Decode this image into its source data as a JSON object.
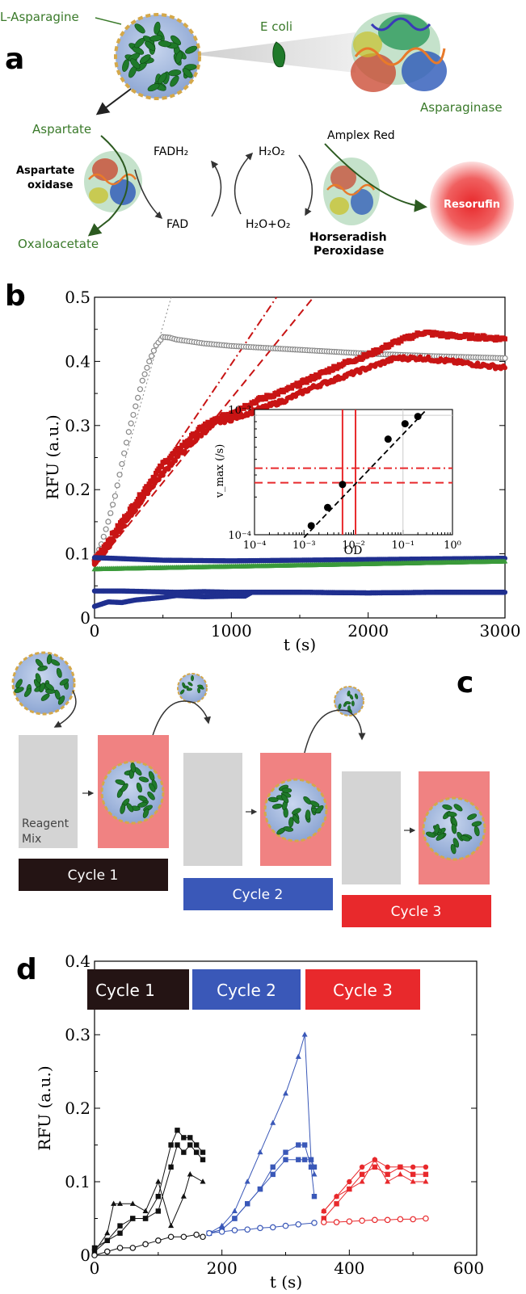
{
  "panel_a": {
    "label": "a",
    "l_asparagine": "L-Asparagine",
    "e_coli": "E coli",
    "asparaginase": "Asparaginase",
    "aspartate": "Aspartate",
    "aspartate_oxidase": [
      "Aspartate",
      "oxidase"
    ],
    "oxaloacetate": "Oxaloacetate",
    "fadh2": "FADH₂",
    "fad": "FAD",
    "h2o2": "H₂O₂",
    "h2o_o2": "H₂O+O₂",
    "amplex_red": "Amplex Red",
    "hrp": [
      "Horseradish",
      "Peroxidase"
    ],
    "resorufin": "Resorufin"
  },
  "panel_b": {
    "label": "b",
    "ylabel": "RFU (a.u.)",
    "xlabel": "t (s)",
    "yticks": [
      "0",
      "0.1",
      "0.2",
      "0.3",
      "0.4",
      "0.5"
    ],
    "xticks": [
      "0",
      "1000",
      "2000",
      "3000"
    ],
    "inset": {
      "ylabel": "v_max (/s)",
      "xlabel": "OD",
      "yticks": [
        "10⁻⁴",
        "10⁻³"
      ],
      "xticks": [
        "10⁻⁴",
        "10⁻³",
        "10⁻²",
        "10⁻¹",
        "10⁰"
      ]
    }
  },
  "panel_c": {
    "label": "c",
    "reagent_mix": [
      "Reagent",
      "Mix"
    ],
    "cycles": [
      "Cycle 1",
      "Cycle 2",
      "Cycle 3"
    ]
  },
  "panel_d": {
    "label": "d",
    "ylabel": "RFU (a.u.)",
    "xlabel": "t (s)",
    "yticks": [
      "0",
      "0.1",
      "0.2",
      "0.3",
      "0.4"
    ],
    "xticks": [
      "0",
      "200",
      "400",
      "600"
    ],
    "cycles": [
      "Cycle 1",
      "Cycle 2",
      "Cycle 3"
    ]
  },
  "colors": {
    "cycle1": "#241414",
    "cycle2": "#3a58b8",
    "cycle3": "#e8292c",
    "text_green": "#3a7a2a",
    "red_series": "#c81414",
    "blue_series": "#1f2f8f",
    "green_series": "#3a9a3a",
    "grey_series": "#888888",
    "pink_box": "#f08282",
    "grey_box": "#d4d4d4"
  },
  "chart_data": [
    {
      "type": "scatter",
      "panel": "b",
      "xlabel": "t (s)",
      "ylabel": "RFU (a.u.)",
      "xlim": [
        0,
        3000
      ],
      "ylim": [
        0,
        0.5
      ],
      "grid": false,
      "series": [
        {
          "color": "#888888",
          "marker": "open-circle",
          "x": [
            0,
            50,
            100,
            150,
            200,
            250,
            300,
            350,
            400,
            450,
            500,
            550,
            600,
            800,
            1000,
            1500,
            2000,
            2500,
            3000
          ],
          "y": [
            0.09,
            0.115,
            0.15,
            0.19,
            0.24,
            0.29,
            0.33,
            0.37,
            0.4,
            0.425,
            0.438,
            0.437,
            0.434,
            0.428,
            0.424,
            0.418,
            0.412,
            0.408,
            0.405
          ]
        },
        {
          "color": "#c81414",
          "marker": "square",
          "x": [
            0,
            100,
            200,
            300,
            400,
            500,
            600,
            700,
            800,
            900,
            1000,
            1200,
            1400,
            1600,
            1800,
            2000,
            2200,
            2400,
            2600,
            2800,
            3000
          ],
          "y": [
            0.09,
            0.12,
            0.15,
            0.18,
            0.21,
            0.24,
            0.26,
            0.28,
            0.3,
            0.31,
            0.32,
            0.34,
            0.355,
            0.375,
            0.395,
            0.41,
            0.43,
            0.445,
            0.44,
            0.438,
            0.435
          ]
        },
        {
          "color": "#c81414",
          "marker": "circle",
          "x": [
            0,
            100,
            200,
            300,
            400,
            500,
            600,
            700,
            800,
            900,
            1000,
            1200,
            1400,
            1600,
            1800,
            2000,
            2200,
            2400,
            2600,
            2800,
            3000
          ],
          "y": [
            0.085,
            0.11,
            0.14,
            0.17,
            0.2,
            0.225,
            0.25,
            0.27,
            0.29,
            0.305,
            0.31,
            0.325,
            0.34,
            0.36,
            0.375,
            0.39,
            0.405,
            0.405,
            0.4,
            0.395,
            0.39
          ]
        },
        {
          "color": "#1f2f8f",
          "marker": "circle",
          "x": [
            0,
            500,
            1000,
            1500,
            2000,
            2500,
            3000
          ],
          "y": [
            0.094,
            0.09,
            0.089,
            0.09,
            0.091,
            0.092,
            0.093
          ]
        },
        {
          "color": "#3a9a3a",
          "marker": "triangle",
          "x": [
            0,
            500,
            1000,
            1500,
            2000,
            2500,
            3000
          ],
          "y": [
            0.076,
            0.078,
            0.08,
            0.082,
            0.084,
            0.086,
            0.088
          ]
        },
        {
          "color": "#1f2f8f",
          "marker": "circle",
          "x": [
            0,
            200,
            400,
            600,
            800,
            1000,
            1500,
            2000,
            2500,
            3000
          ],
          "y": [
            0.042,
            0.042,
            0.041,
            0.04,
            0.041,
            0.04,
            0.04,
            0.039,
            0.04,
            0.04
          ]
        },
        {
          "color": "#1f2f8f",
          "marker": "circle",
          "x": [
            0,
            100,
            200,
            300,
            400,
            500,
            600,
            800,
            1000,
            1100,
            1150,
            1500,
            2000,
            2500,
            3000
          ],
          "y": [
            0.018,
            0.025,
            0.024,
            0.028,
            0.03,
            0.032,
            0.035,
            0.033,
            0.034,
            0.034,
            0.04,
            0.04,
            0.039,
            0.04,
            0.04
          ]
        }
      ],
      "fit_lines": [
        {
          "style": "dotted",
          "color": "#888888",
          "x": [
            0,
            560
          ],
          "y": [
            0.08,
            0.5
          ]
        },
        {
          "style": "dash-dot",
          "color": "#c81414",
          "x": [
            0,
            1330
          ],
          "y": [
            0.08,
            0.5
          ]
        },
        {
          "style": "dashed",
          "color": "#c81414",
          "x": [
            0,
            1600
          ],
          "y": [
            0.08,
            0.5
          ]
        }
      ]
    },
    {
      "type": "scatter",
      "panel": "b-inset",
      "xlabel": "OD",
      "ylabel": "v_max (/s)",
      "xscale": "log",
      "yscale": "log",
      "xlim": [
        0.0001,
        1
      ],
      "ylim": [
        0.0001,
        0.001
      ],
      "points": {
        "x": [
          0.0014,
          0.003,
          0.006,
          0.05,
          0.11,
          0.2
        ],
        "y": [
          0.000118,
          0.000165,
          0.000252,
          0.00058,
          0.00077,
          0.00088
        ]
      },
      "hlines": [
        {
          "style": "dash-dot",
          "y": 0.00034
        },
        {
          "style": "dashed",
          "y": 0.00026
        }
      ],
      "vlines": [
        {
          "color": "#e8292c",
          "x": 0.006
        },
        {
          "color": "#e8292c",
          "x": 0.011
        }
      ]
    },
    {
      "type": "line",
      "panel": "d",
      "xlabel": "t (s)",
      "ylabel": "RFU (a.u.)",
      "xlim": [
        0,
        600
      ],
      "ylim": [
        0,
        0.4
      ],
      "series": [
        {
          "color": "#111111",
          "marker": "square",
          "x": [
            0,
            20,
            40,
            60,
            80,
            100,
            120,
            130,
            140,
            150,
            160,
            170
          ],
          "y": [
            0.005,
            0.02,
            0.04,
            0.05,
            0.05,
            0.08,
            0.15,
            0.17,
            0.16,
            0.16,
            0.15,
            0.14
          ]
        },
        {
          "color": "#111111",
          "marker": "square",
          "x": [
            0,
            20,
            40,
            60,
            80,
            100,
            120,
            130,
            140,
            150,
            160,
            170
          ],
          "y": [
            0.01,
            0.02,
            0.03,
            0.05,
            0.05,
            0.06,
            0.12,
            0.15,
            0.14,
            0.15,
            0.14,
            0.13
          ]
        },
        {
          "color": "#111111",
          "marker": "triangle",
          "x": [
            0,
            20,
            30,
            40,
            60,
            80,
            100,
            120,
            140,
            150,
            170
          ],
          "y": [
            0.005,
            0.03,
            0.07,
            0.07,
            0.07,
            0.06,
            0.1,
            0.04,
            0.08,
            0.11,
            0.1
          ]
        },
        {
          "color": "#111111",
          "marker": "open-circle",
          "x": [
            0,
            20,
            40,
            60,
            80,
            100,
            120,
            140,
            160,
            170
          ],
          "y": [
            0.0,
            0.005,
            0.01,
            0.01,
            0.015,
            0.02,
            0.025,
            0.025,
            0.028,
            0.025
          ]
        },
        {
          "color": "#3a58b8",
          "marker": "triangle",
          "x": [
            180,
            200,
            220,
            240,
            260,
            280,
            300,
            320,
            330,
            340,
            345
          ],
          "y": [
            0.03,
            0.04,
            0.06,
            0.1,
            0.14,
            0.18,
            0.22,
            0.27,
            0.3,
            0.13,
            0.11
          ]
        },
        {
          "color": "#3a58b8",
          "marker": "square",
          "x": [
            180,
            200,
            220,
            240,
            260,
            280,
            300,
            320,
            330,
            340,
            345
          ],
          "y": [
            0.03,
            0.035,
            0.05,
            0.07,
            0.09,
            0.12,
            0.14,
            0.15,
            0.15,
            0.12,
            0.08
          ]
        },
        {
          "color": "#3a58b8",
          "marker": "square",
          "x": [
            180,
            200,
            220,
            240,
            260,
            280,
            300,
            320,
            330,
            340,
            345
          ],
          "y": [
            0.03,
            0.035,
            0.05,
            0.07,
            0.09,
            0.11,
            0.13,
            0.13,
            0.13,
            0.13,
            0.12
          ]
        },
        {
          "color": "#3a58b8",
          "marker": "open-circle",
          "x": [
            180,
            200,
            220,
            240,
            260,
            280,
            300,
            320,
            345
          ],
          "y": [
            0.03,
            0.032,
            0.034,
            0.035,
            0.037,
            0.038,
            0.04,
            0.042,
            0.044
          ]
        },
        {
          "color": "#e8292c",
          "marker": "circle",
          "x": [
            360,
            380,
            400,
            420,
            440,
            460,
            480,
            500,
            520
          ],
          "y": [
            0.06,
            0.08,
            0.1,
            0.12,
            0.13,
            0.12,
            0.12,
            0.12,
            0.12
          ]
        },
        {
          "color": "#e8292c",
          "marker": "square",
          "x": [
            360,
            380,
            400,
            420,
            440,
            460,
            480,
            500,
            520
          ],
          "y": [
            0.05,
            0.07,
            0.09,
            0.11,
            0.12,
            0.11,
            0.12,
            0.11,
            0.11
          ]
        },
        {
          "color": "#e8292c",
          "marker": "triangle",
          "x": [
            360,
            380,
            400,
            420,
            440,
            460,
            480,
            500,
            520
          ],
          "y": [
            0.06,
            0.08,
            0.09,
            0.1,
            0.13,
            0.1,
            0.11,
            0.1,
            0.1
          ]
        },
        {
          "color": "#e8292c",
          "marker": "open-circle",
          "x": [
            360,
            380,
            400,
            420,
            440,
            460,
            480,
            500,
            520
          ],
          "y": [
            0.045,
            0.045,
            0.046,
            0.047,
            0.048,
            0.048,
            0.049,
            0.049,
            0.05
          ]
        }
      ]
    }
  ]
}
